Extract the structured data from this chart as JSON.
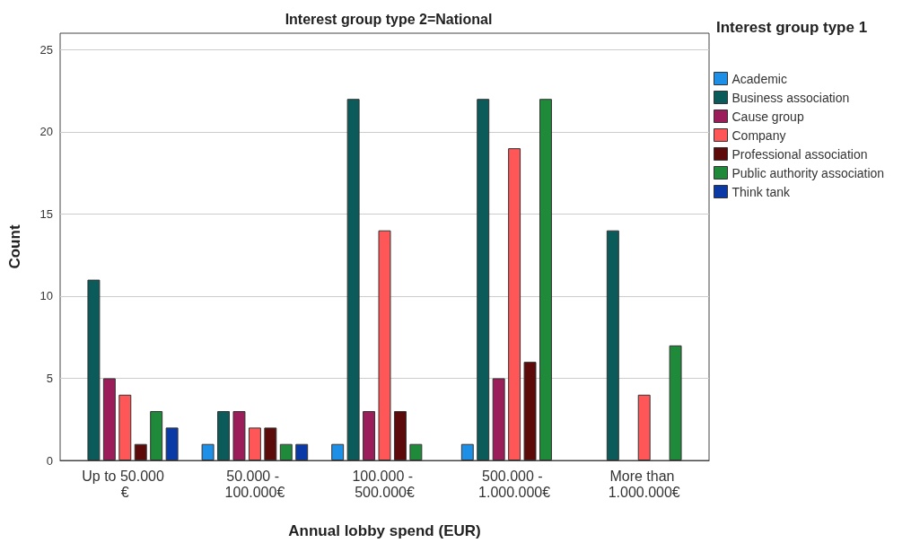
{
  "chart_data": {
    "type": "bar",
    "title": "Interest group type 2=National",
    "xlabel": "Annual lobby spend (EUR)",
    "ylabel": "Count",
    "legend_title": "Interest group type 1",
    "categories": [
      "Up to 50.000 €",
      "50.000 - 100.000€",
      "100.000 - 500.000€",
      "500.000 - 1.000.000€",
      "More than 1.000.000€"
    ],
    "series": [
      {
        "name": "Academic",
        "color": "#1e8fe6",
        "values": [
          null,
          1,
          1,
          1,
          null
        ]
      },
      {
        "name": "Business association",
        "color": "#0b5b5b",
        "values": [
          11,
          3,
          22,
          22,
          14
        ]
      },
      {
        "name": "Cause group",
        "color": "#9b1d5a",
        "values": [
          5,
          3,
          3,
          5,
          null
        ]
      },
      {
        "name": "Company",
        "color": "#ff5757",
        "values": [
          4,
          2,
          14,
          19,
          4
        ]
      },
      {
        "name": "Professional association",
        "color": "#5c0a0a",
        "values": [
          1,
          2,
          3,
          6,
          null
        ]
      },
      {
        "name": "Public authority association",
        "color": "#1e8a3a",
        "values": [
          3,
          1,
          1,
          22,
          7
        ]
      },
      {
        "name": "Think tank",
        "color": "#0b3aa6",
        "values": [
          2,
          1,
          null,
          null,
          null
        ]
      }
    ],
    "ylim": [
      0,
      26
    ],
    "yticks": [
      0,
      5,
      10,
      15,
      20,
      25
    ],
    "grid": "y",
    "legend": "right"
  }
}
